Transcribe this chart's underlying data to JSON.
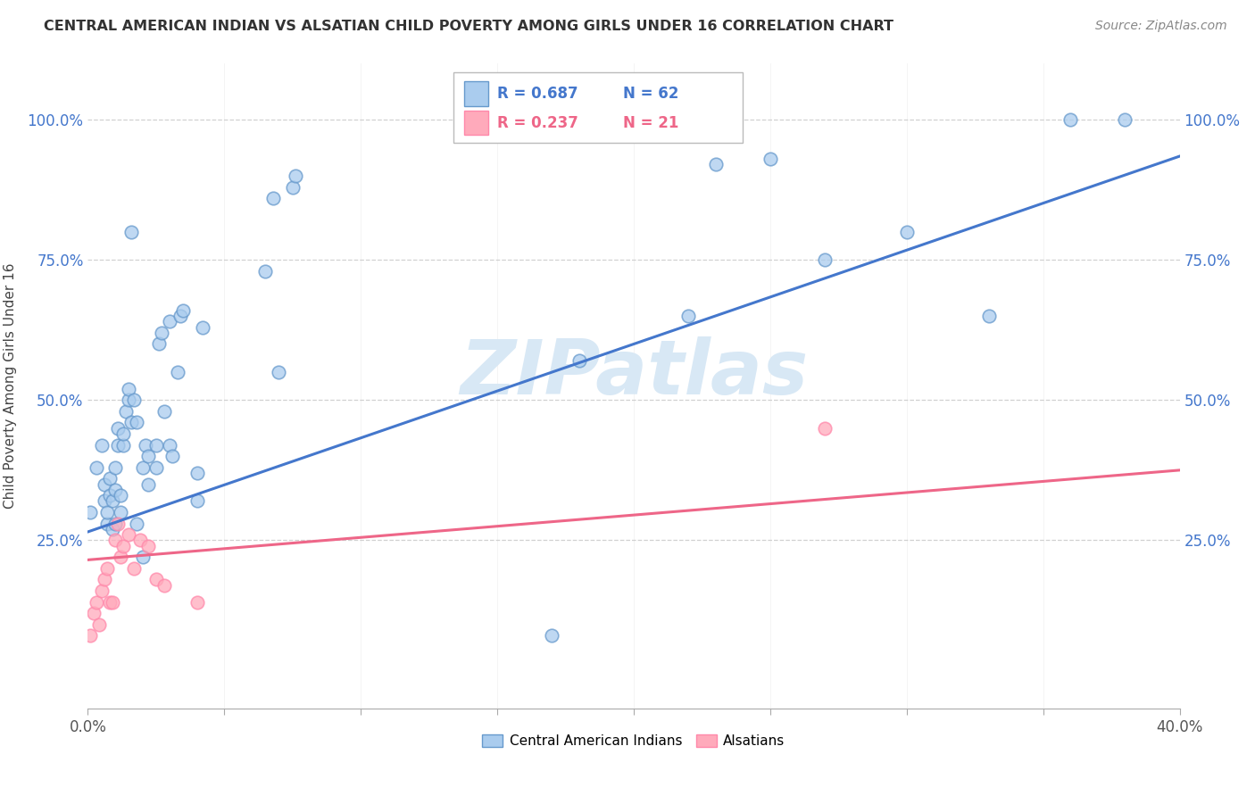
{
  "title": "CENTRAL AMERICAN INDIAN VS ALSATIAN CHILD POVERTY AMONG GIRLS UNDER 16 CORRELATION CHART",
  "source": "Source: ZipAtlas.com",
  "ylabel": "Child Poverty Among Girls Under 16",
  "ytick_labels": [
    "25.0%",
    "50.0%",
    "75.0%",
    "100.0%"
  ],
  "ytick_values": [
    0.25,
    0.5,
    0.75,
    1.0
  ],
  "legend_blue_r": "R = 0.687",
  "legend_blue_n": "N = 62",
  "legend_pink_r": "R = 0.237",
  "legend_pink_n": "N = 21",
  "blue_scatter_color": "#AACCEE",
  "pink_scatter_color": "#FFAABB",
  "blue_edge_color": "#6699CC",
  "pink_edge_color": "#FF88AA",
  "blue_line_color": "#4477CC",
  "pink_line_color": "#EE6688",
  "watermark_color": "#D8E8F5",
  "watermark": "ZIPatlas",
  "blue_scatter_x": [
    0.001,
    0.003,
    0.005,
    0.006,
    0.006,
    0.007,
    0.007,
    0.008,
    0.008,
    0.009,
    0.009,
    0.01,
    0.01,
    0.01,
    0.011,
    0.011,
    0.012,
    0.012,
    0.013,
    0.013,
    0.014,
    0.015,
    0.015,
    0.016,
    0.016,
    0.017,
    0.018,
    0.018,
    0.02,
    0.02,
    0.021,
    0.022,
    0.022,
    0.025,
    0.025,
    0.026,
    0.027,
    0.028,
    0.03,
    0.03,
    0.031,
    0.033,
    0.034,
    0.035,
    0.04,
    0.04,
    0.042,
    0.065,
    0.068,
    0.07,
    0.075,
    0.076,
    0.17,
    0.18,
    0.22,
    0.23,
    0.25,
    0.27,
    0.3,
    0.33,
    0.36,
    0.38
  ],
  "blue_scatter_y": [
    0.3,
    0.38,
    0.42,
    0.32,
    0.35,
    0.28,
    0.3,
    0.33,
    0.36,
    0.27,
    0.32,
    0.28,
    0.34,
    0.38,
    0.42,
    0.45,
    0.3,
    0.33,
    0.42,
    0.44,
    0.48,
    0.5,
    0.52,
    0.8,
    0.46,
    0.5,
    0.46,
    0.28,
    0.22,
    0.38,
    0.42,
    0.4,
    0.35,
    0.38,
    0.42,
    0.6,
    0.62,
    0.48,
    0.42,
    0.64,
    0.4,
    0.55,
    0.65,
    0.66,
    0.32,
    0.37,
    0.63,
    0.73,
    0.86,
    0.55,
    0.88,
    0.9,
    0.08,
    0.57,
    0.65,
    0.92,
    0.93,
    0.75,
    0.8,
    0.65,
    1.0,
    1.0
  ],
  "pink_scatter_x": [
    0.001,
    0.002,
    0.003,
    0.004,
    0.005,
    0.006,
    0.007,
    0.008,
    0.009,
    0.01,
    0.011,
    0.012,
    0.013,
    0.015,
    0.017,
    0.019,
    0.022,
    0.025,
    0.028,
    0.04,
    0.27
  ],
  "pink_scatter_y": [
    0.08,
    0.12,
    0.14,
    0.1,
    0.16,
    0.18,
    0.2,
    0.14,
    0.14,
    0.25,
    0.28,
    0.22,
    0.24,
    0.26,
    0.2,
    0.25,
    0.24,
    0.18,
    0.17,
    0.14,
    0.45
  ],
  "blue_line_x0": 0.0,
  "blue_line_x1": 0.4,
  "blue_line_y0": 0.265,
  "blue_line_y1": 0.935,
  "pink_line_x0": 0.0,
  "pink_line_x1": 0.4,
  "pink_line_y0": 0.215,
  "pink_line_y1": 0.375,
  "xlim": [
    0.0,
    0.4
  ],
  "ylim": [
    -0.05,
    1.1
  ],
  "background_color": "#ffffff",
  "grid_color": "#cccccc",
  "legend_entries": [
    "Central American Indians",
    "Alsatians"
  ]
}
